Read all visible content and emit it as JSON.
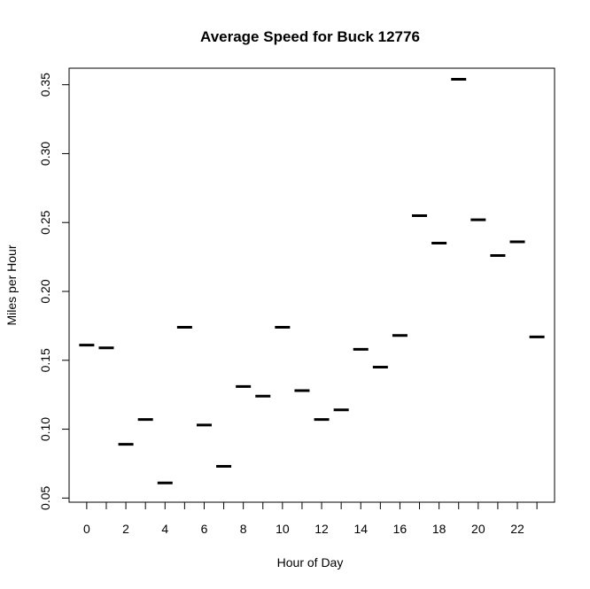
{
  "chart_data": {
    "type": "scatter",
    "title": "Average Speed for Buck 12776",
    "xlabel": "Hour of Day",
    "ylabel": "Miles per Hour",
    "xlim": [
      -0.9,
      23.9
    ],
    "ylim": [
      0.047,
      0.362
    ],
    "x_ticks": [
      0,
      1,
      2,
      3,
      4,
      5,
      6,
      7,
      8,
      9,
      10,
      11,
      12,
      13,
      14,
      15,
      16,
      17,
      18,
      19,
      20,
      21,
      22,
      23
    ],
    "x_tick_labels": [
      "0",
      "2",
      "4",
      "6",
      "8",
      "10",
      "12",
      "14",
      "16",
      "18",
      "20",
      "22"
    ],
    "x_tick_label_values": [
      0,
      2,
      4,
      6,
      8,
      10,
      12,
      14,
      16,
      18,
      20,
      22
    ],
    "y_ticks": [
      0.05,
      0.1,
      0.15,
      0.2,
      0.25,
      0.3,
      0.35
    ],
    "y_tick_labels": [
      "0.05",
      "0.10",
      "0.15",
      "0.20",
      "0.25",
      "0.30",
      "0.35"
    ],
    "marker": "horizontal-dash",
    "color": "#000000",
    "grid": false,
    "x": [
      0,
      1,
      2,
      3,
      4,
      5,
      6,
      7,
      8,
      9,
      10,
      11,
      12,
      13,
      14,
      15,
      16,
      17,
      18,
      19,
      20,
      21,
      22,
      23
    ],
    "y": [
      0.161,
      0.159,
      0.089,
      0.107,
      0.061,
      0.174,
      0.103,
      0.073,
      0.131,
      0.124,
      0.174,
      0.128,
      0.107,
      0.114,
      0.158,
      0.145,
      0.168,
      0.255,
      0.235,
      0.354,
      0.252,
      0.226,
      0.236,
      0.167
    ]
  }
}
